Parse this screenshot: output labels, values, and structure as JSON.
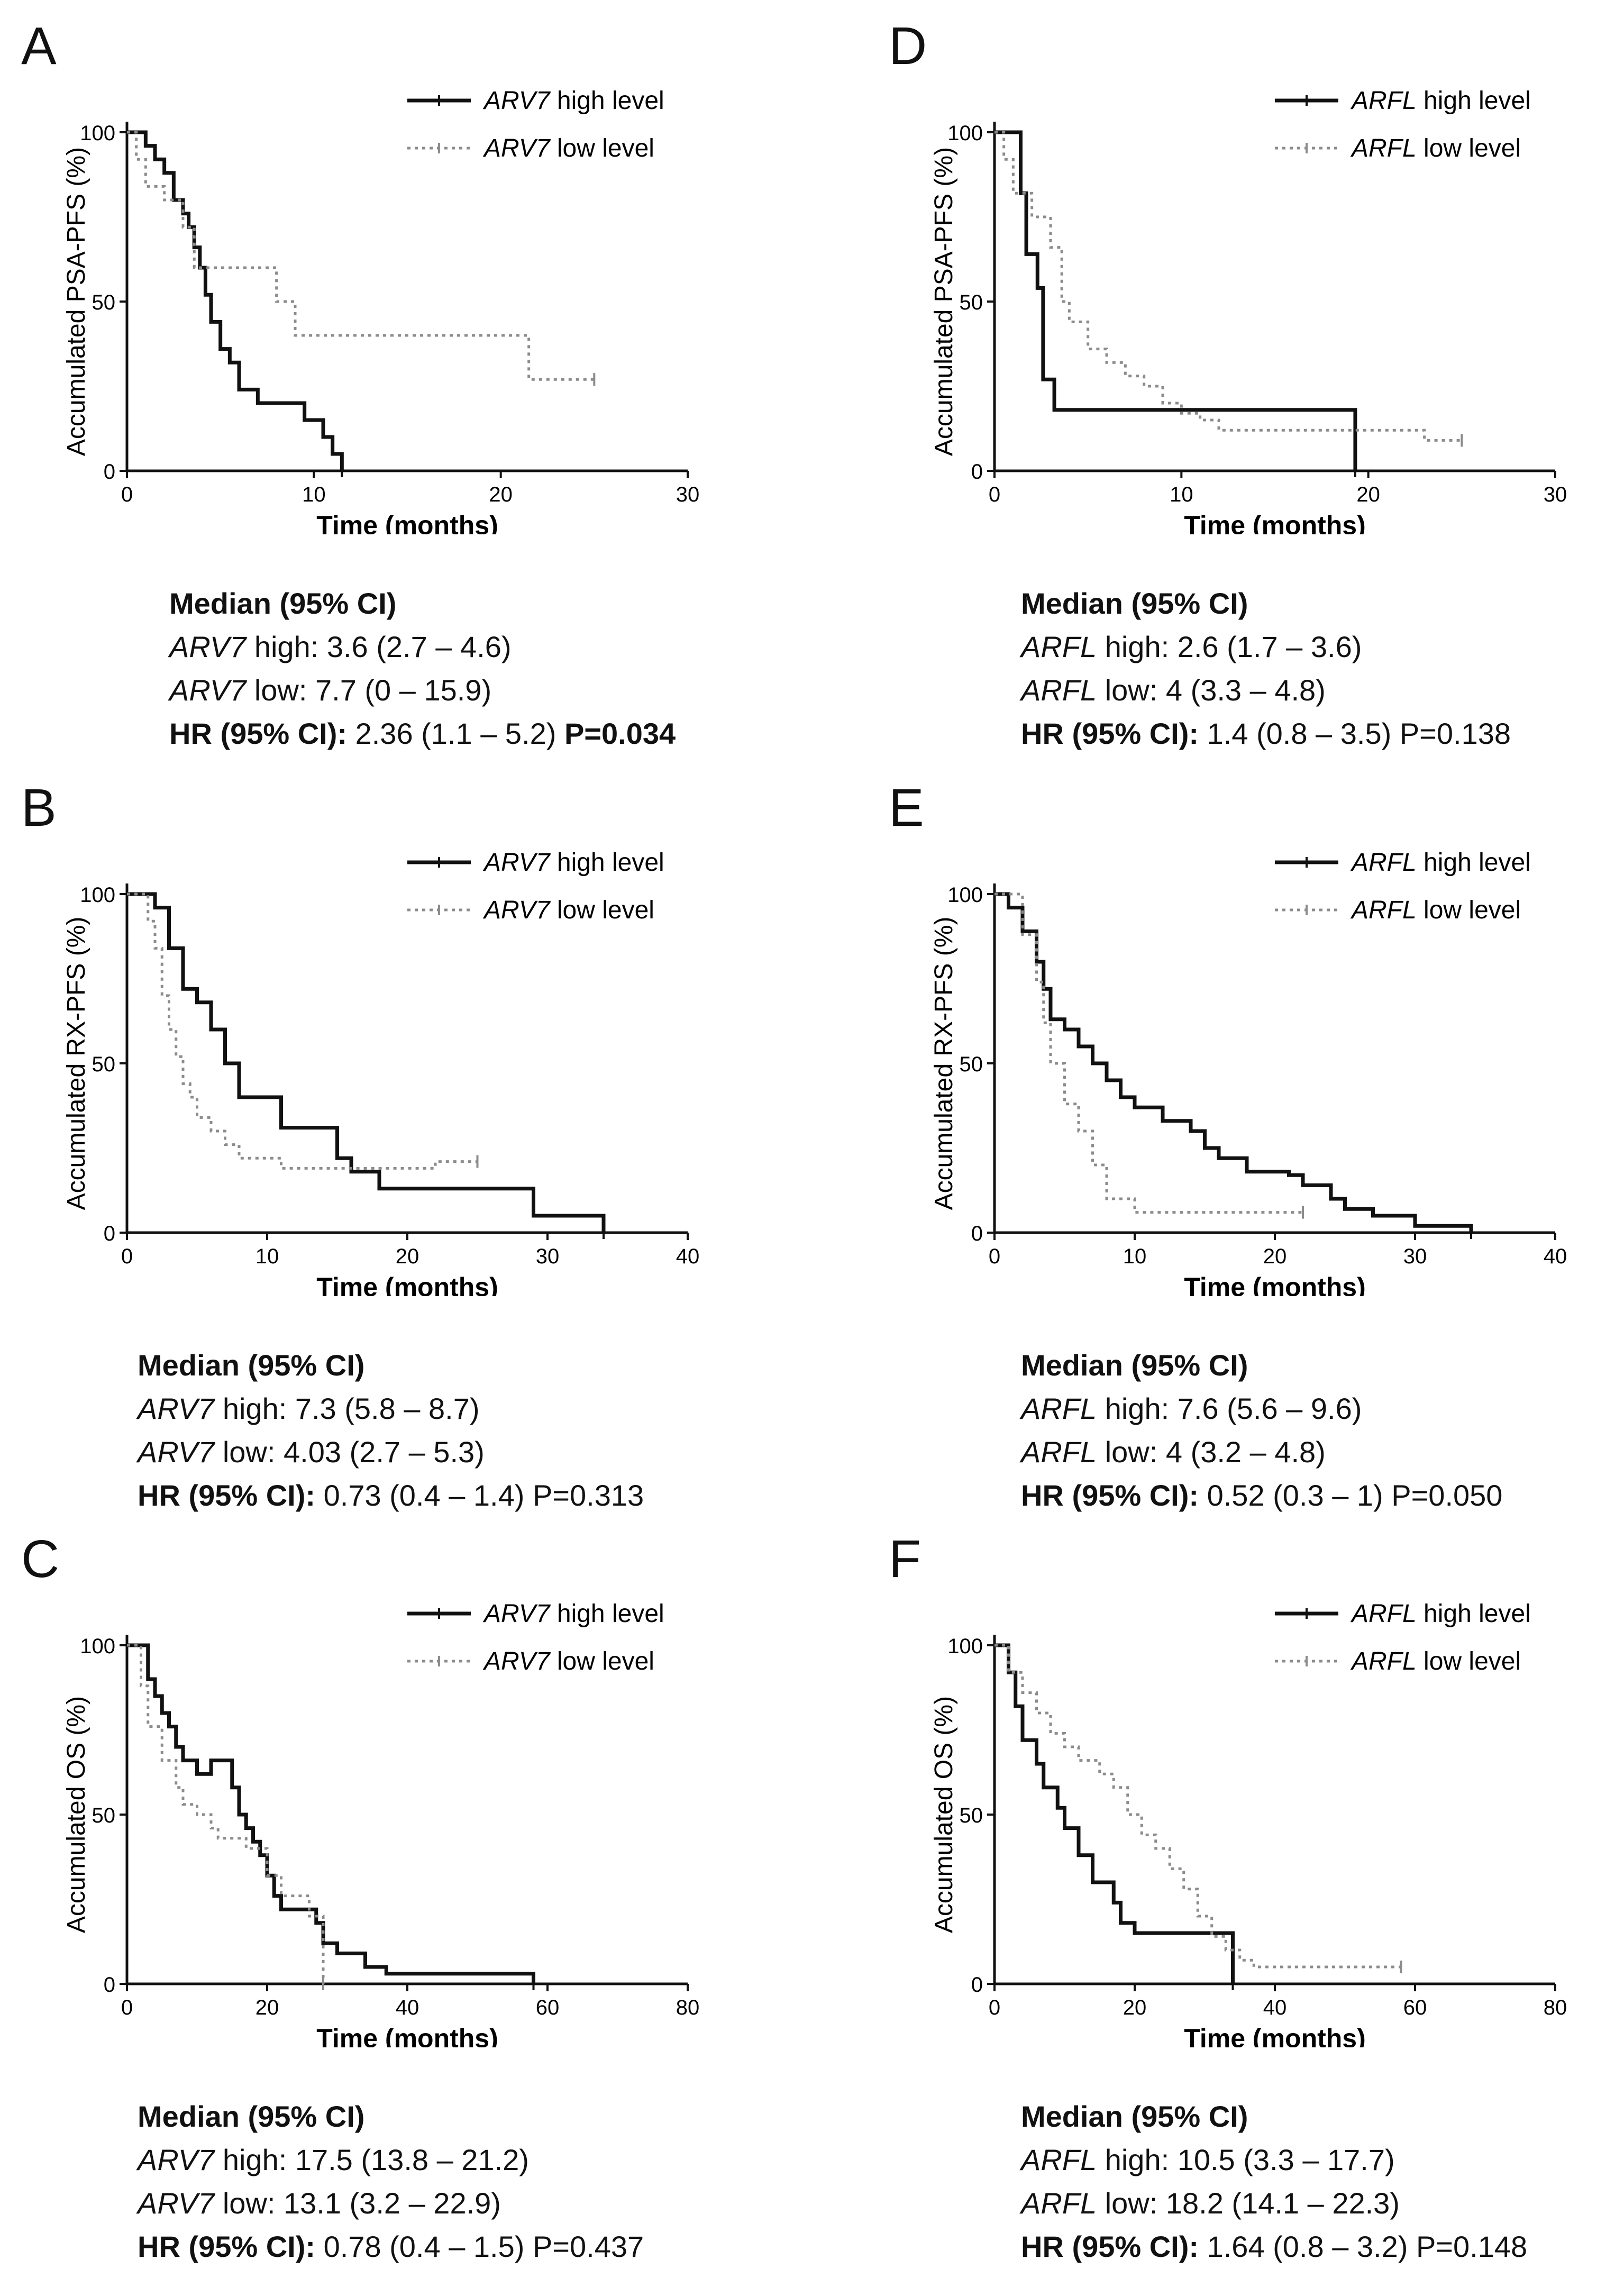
{
  "colors": {
    "high": "#111111",
    "low": "#8c8c8c"
  },
  "chart_data": [
    {
      "id": "A",
      "type": "line",
      "letter": "A",
      "ylabel": "Accumulated PSA-PFS (%)",
      "xlabel": "Time (months)",
      "xlim": [
        0,
        30
      ],
      "ylim": [
        0,
        100
      ],
      "xticks": [
        0,
        10,
        20,
        30
      ],
      "yticks": [
        0,
        50,
        100
      ],
      "legend": "top-right",
      "series": [
        {
          "name": "ARV7",
          "name_suffix": " high level",
          "style": "solid",
          "x": [
            0,
            1,
            1.5,
            2,
            2.5,
            3,
            3.3,
            3.6,
            3.9,
            4.2,
            4.5,
            5,
            5.5,
            6,
            7,
            8.5,
            9.5,
            10,
            10.5,
            11,
            11.5
          ],
          "y": [
            100,
            96,
            92,
            88,
            80,
            76,
            72,
            66,
            60,
            52,
            44,
            36,
            32,
            24,
            20,
            20,
            15,
            15,
            10,
            5,
            0
          ]
        },
        {
          "name": "ARV7",
          "name_suffix": " low level",
          "style": "dotted",
          "x": [
            0,
            0.5,
            1,
            2,
            3,
            3.6,
            8,
            9,
            21,
            21.5,
            25
          ],
          "y": [
            100,
            92,
            84,
            80,
            72,
            60,
            50,
            40,
            40,
            27,
            27
          ]
        }
      ],
      "stats": {
        "title": "Median (95% CI)",
        "high_gene": "ARV7",
        "high_value": " high:  3.6 (2.7 – 4.6)",
        "low_gene": "ARV7",
        "low_value": " low: 7.7 (0 – 15.9)",
        "hr_label": "HR (95% CI):",
        "hr_value": " 2.36 (1.1 – 5.2) ",
        "p_value": "P=0.034",
        "p_bold": true
      }
    },
    {
      "id": "D",
      "type": "line",
      "letter": "D",
      "ylabel": "Accumulated PSA-PFS (%)",
      "xlabel": "Time (months)",
      "xlim": [
        0,
        30
      ],
      "ylim": [
        0,
        100
      ],
      "xticks": [
        0,
        10,
        20,
        30
      ],
      "yticks": [
        0,
        50,
        100
      ],
      "legend": "top-right",
      "series": [
        {
          "name": "ARFL",
          "name_suffix": " high level",
          "style": "solid",
          "x": [
            0,
            1.4,
            1.7,
            2.3,
            2.6,
            3.2,
            19.3
          ],
          "y": [
            100,
            82,
            64,
            54,
            27,
            18,
            0
          ]
        },
        {
          "name": "ARFL",
          "name_suffix": " low level",
          "style": "dotted",
          "x": [
            0,
            0.5,
            1,
            2,
            3,
            3.6,
            4,
            5,
            6,
            7,
            8,
            9,
            10,
            11,
            12,
            22,
            23,
            25
          ],
          "y": [
            100,
            92,
            82,
            75,
            66,
            50,
            44,
            36,
            32,
            28,
            25,
            20,
            17,
            15,
            12,
            12,
            9,
            9
          ]
        }
      ],
      "stats": {
        "title": "Median (95% CI)",
        "high_gene": "ARFL",
        "high_value": " high:  2.6 (1.7 – 3.6)",
        "low_gene": "ARFL",
        "low_value": " low: 4 (3.3 – 4.8)",
        "hr_label": "HR (95% CI):",
        "hr_value": " 1.4 (0.8 – 3.5) ",
        "p_value": "P=0.138",
        "p_bold": false
      }
    },
    {
      "id": "B",
      "type": "line",
      "letter": "B",
      "ylabel": "Accumulated RX-PFS (%)",
      "xlabel": "Time (months)",
      "xlim": [
        0,
        40
      ],
      "ylim": [
        0,
        100
      ],
      "xticks": [
        0,
        10,
        20,
        30,
        40
      ],
      "yticks": [
        0,
        50,
        100
      ],
      "legend": "top-right",
      "series": [
        {
          "name": "ARV7",
          "name_suffix": " high level",
          "style": "solid",
          "x": [
            0,
            2,
            3,
            4,
            5,
            6,
            7,
            8,
            10,
            11,
            15,
            16,
            18,
            29,
            34
          ],
          "y": [
            100,
            96,
            84,
            72,
            68,
            60,
            50,
            40,
            40,
            31,
            22,
            18,
            13,
            5,
            0
          ]
        },
        {
          "name": "ARV7",
          "name_suffix": " low level",
          "style": "dotted",
          "x": [
            0,
            1.5,
            2,
            2.5,
            3,
            3.5,
            4,
            4.5,
            5,
            6,
            7,
            8,
            9,
            11,
            16,
            22,
            25
          ],
          "y": [
            100,
            92,
            84,
            70,
            60,
            52,
            44,
            40,
            34,
            30,
            26,
            22,
            22,
            19,
            19,
            21,
            21
          ]
        }
      ],
      "stats": {
        "title": "Median (95% CI)",
        "high_gene": "ARV7",
        "high_value": " high:  7.3 (5.8 – 8.7)",
        "low_gene": "ARV7",
        "low_value": " low: 4.03 (2.7 – 5.3)",
        "hr_label": "HR (95% CI):",
        "hr_value": " 0.73 (0.4 – 1.4) ",
        "p_value": "P=0.313",
        "p_bold": false
      }
    },
    {
      "id": "E",
      "type": "line",
      "letter": "E",
      "ylabel": "Accumulated RX-PFS (%)",
      "xlabel": "Time (months)",
      "xlim": [
        0,
        40
      ],
      "ylim": [
        0,
        100
      ],
      "xticks": [
        0,
        10,
        20,
        30,
        40
      ],
      "yticks": [
        0,
        50,
        100
      ],
      "legend": "top-right",
      "series": [
        {
          "name": "ARFL",
          "name_suffix": " high level",
          "style": "solid",
          "x": [
            0,
            1,
            2,
            3,
            3.5,
            4,
            5,
            6,
            7,
            8,
            9,
            10,
            12,
            14,
            15,
            16,
            18,
            21,
            22,
            24,
            25,
            27,
            30,
            34
          ],
          "y": [
            100,
            96,
            89,
            80,
            72,
            63,
            60,
            55,
            50,
            45,
            40,
            37,
            33,
            30,
            25,
            22,
            18,
            17,
            14,
            10,
            7,
            5,
            2,
            0
          ]
        },
        {
          "name": "ARFL",
          "name_suffix": " low level",
          "style": "dotted",
          "x": [
            0,
            2,
            3,
            3.5,
            4,
            5,
            6,
            7,
            8,
            10,
            22
          ],
          "y": [
            100,
            88,
            74,
            62,
            50,
            38,
            30,
            20,
            10,
            6,
            6
          ]
        }
      ],
      "stats": {
        "title": "Median (95% CI)",
        "high_gene": "ARFL",
        "high_value": " high:  7.6 (5.6 – 9.6)",
        "low_gene": "ARFL",
        "low_value": " low: 4 (3.2 – 4.8)",
        "hr_label": "HR (95% CI):",
        "hr_value": " 0.52 (0.3 – 1) ",
        "p_value": "P=0.050",
        "p_bold": false
      }
    },
    {
      "id": "C",
      "type": "line",
      "letter": "C",
      "ylabel": "Accumulated OS (%)",
      "xlabel": "Time (months)",
      "xlim": [
        0,
        80
      ],
      "ylim": [
        0,
        100
      ],
      "xticks": [
        0,
        20,
        40,
        60,
        80
      ],
      "yticks": [
        0,
        50,
        100
      ],
      "legend": "top-right",
      "series": [
        {
          "name": "ARV7",
          "name_suffix": " high level",
          "style": "solid",
          "x": [
            0,
            3,
            4,
            5,
            6,
            7,
            8,
            10,
            12,
            15,
            16,
            17,
            18,
            19,
            20,
            21,
            22,
            25,
            27,
            28,
            30,
            34,
            37,
            58
          ],
          "y": [
            100,
            90,
            85,
            80,
            76,
            70,
            66,
            62,
            66,
            58,
            50,
            46,
            42,
            38,
            32,
            26,
            22,
            22,
            18,
            12,
            9,
            5,
            3,
            0
          ]
        },
        {
          "name": "ARV7",
          "name_suffix": " low level",
          "style": "dotted",
          "x": [
            0,
            2,
            3,
            5,
            7,
            8,
            10,
            12,
            13,
            17,
            20,
            22,
            26,
            28
          ],
          "y": [
            100,
            88,
            76,
            66,
            58,
            53,
            50,
            46,
            43,
            40,
            32,
            26,
            20,
            0
          ]
        }
      ],
      "stats": {
        "title": "Median (95% CI)",
        "high_gene": "ARV7",
        "high_value": " high:  17.5 (13.8 – 21.2)",
        "low_gene": "ARV7",
        "low_value": " low: 13.1 (3.2 – 22.9)",
        "hr_label": "HR (95% CI):",
        "hr_value": " 0.78 (0.4 – 1.5) ",
        "p_value": "P=0.437",
        "p_bold": false
      }
    },
    {
      "id": "F",
      "type": "line",
      "letter": "F",
      "ylabel": "Accumulated OS (%)",
      "xlabel": "Time (months)",
      "xlim": [
        0,
        80
      ],
      "ylim": [
        0,
        100
      ],
      "xticks": [
        0,
        20,
        40,
        60,
        80
      ],
      "yticks": [
        0,
        50,
        100
      ],
      "legend": "top-right",
      "series": [
        {
          "name": "ARFL",
          "name_suffix": " high level",
          "style": "solid",
          "x": [
            0,
            2,
            3,
            4,
            6,
            7,
            9,
            10,
            12,
            14,
            17,
            18,
            20,
            21,
            24,
            34
          ],
          "y": [
            100,
            92,
            82,
            72,
            65,
            58,
            52,
            46,
            38,
            30,
            24,
            18,
            15,
            15,
            15,
            0
          ]
        },
        {
          "name": "ARFL",
          "name_suffix": " low level",
          "style": "dotted",
          "x": [
            0,
            2,
            4,
            6,
            8,
            10,
            12,
            15,
            17,
            19,
            21,
            23,
            25,
            27,
            29,
            31,
            33,
            35,
            37,
            38,
            58
          ],
          "y": [
            100,
            92,
            86,
            80,
            74,
            70,
            66,
            62,
            58,
            50,
            44,
            40,
            34,
            28,
            20,
            14,
            10,
            7,
            5,
            5,
            5
          ]
        }
      ],
      "stats": {
        "title": "Median (95% CI)",
        "high_gene": "ARFL",
        "high_value": " high:  10.5 (3.3 – 17.7)",
        "low_gene": "ARFL",
        "low_value": " low: 18.2 (14.1 – 22.3)",
        "hr_label": "HR (95% CI):",
        "hr_value": " 1.64 (0.8 – 3.2) ",
        "p_value": "P=0.148",
        "p_bold": false
      }
    }
  ]
}
